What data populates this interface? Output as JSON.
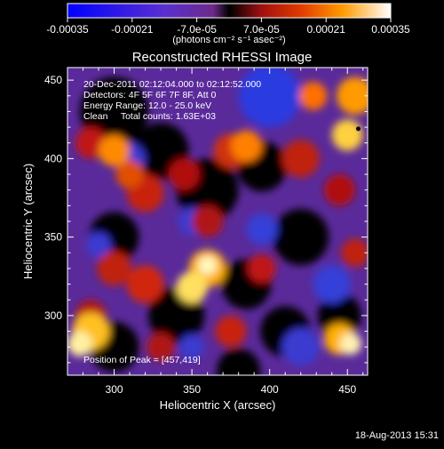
{
  "chart_data": {
    "type": "heatmap",
    "title": "Reconstructed RHESSI Image",
    "xlabel": "Heliocentric X (arcsec)",
    "ylabel": "Heliocentric Y (arcsec)",
    "xlim": [
      270,
      463
    ],
    "ylim": [
      262,
      458
    ],
    "x_ticks": [
      300,
      350,
      400,
      450
    ],
    "y_ticks": [
      300,
      350,
      400,
      450
    ],
    "colorbar": {
      "range": [
        -0.00035,
        0.00035
      ],
      "ticks": [
        "-0.00035",
        "-0.00021",
        "-7.0e-05",
        "7.0e-05",
        "0.00021",
        "0.00035"
      ],
      "label": "(photons cm⁻² s⁻¹ asec⁻²)"
    },
    "annotations": [
      "20-Dec-2011 02:12:04.000 to 02:12:52.000",
      "Detectors: 4F 5F 6F 7F 8F, Att 0",
      "Energy Range: 12.0 - 25.0 keV",
      "Clean     Total counts: 1.63E+03"
    ],
    "peak_label": "Position of Peak = [457,419]",
    "peak": [
      457,
      419
    ]
  },
  "footer": {
    "date": "18-Aug-2013 15:31"
  }
}
